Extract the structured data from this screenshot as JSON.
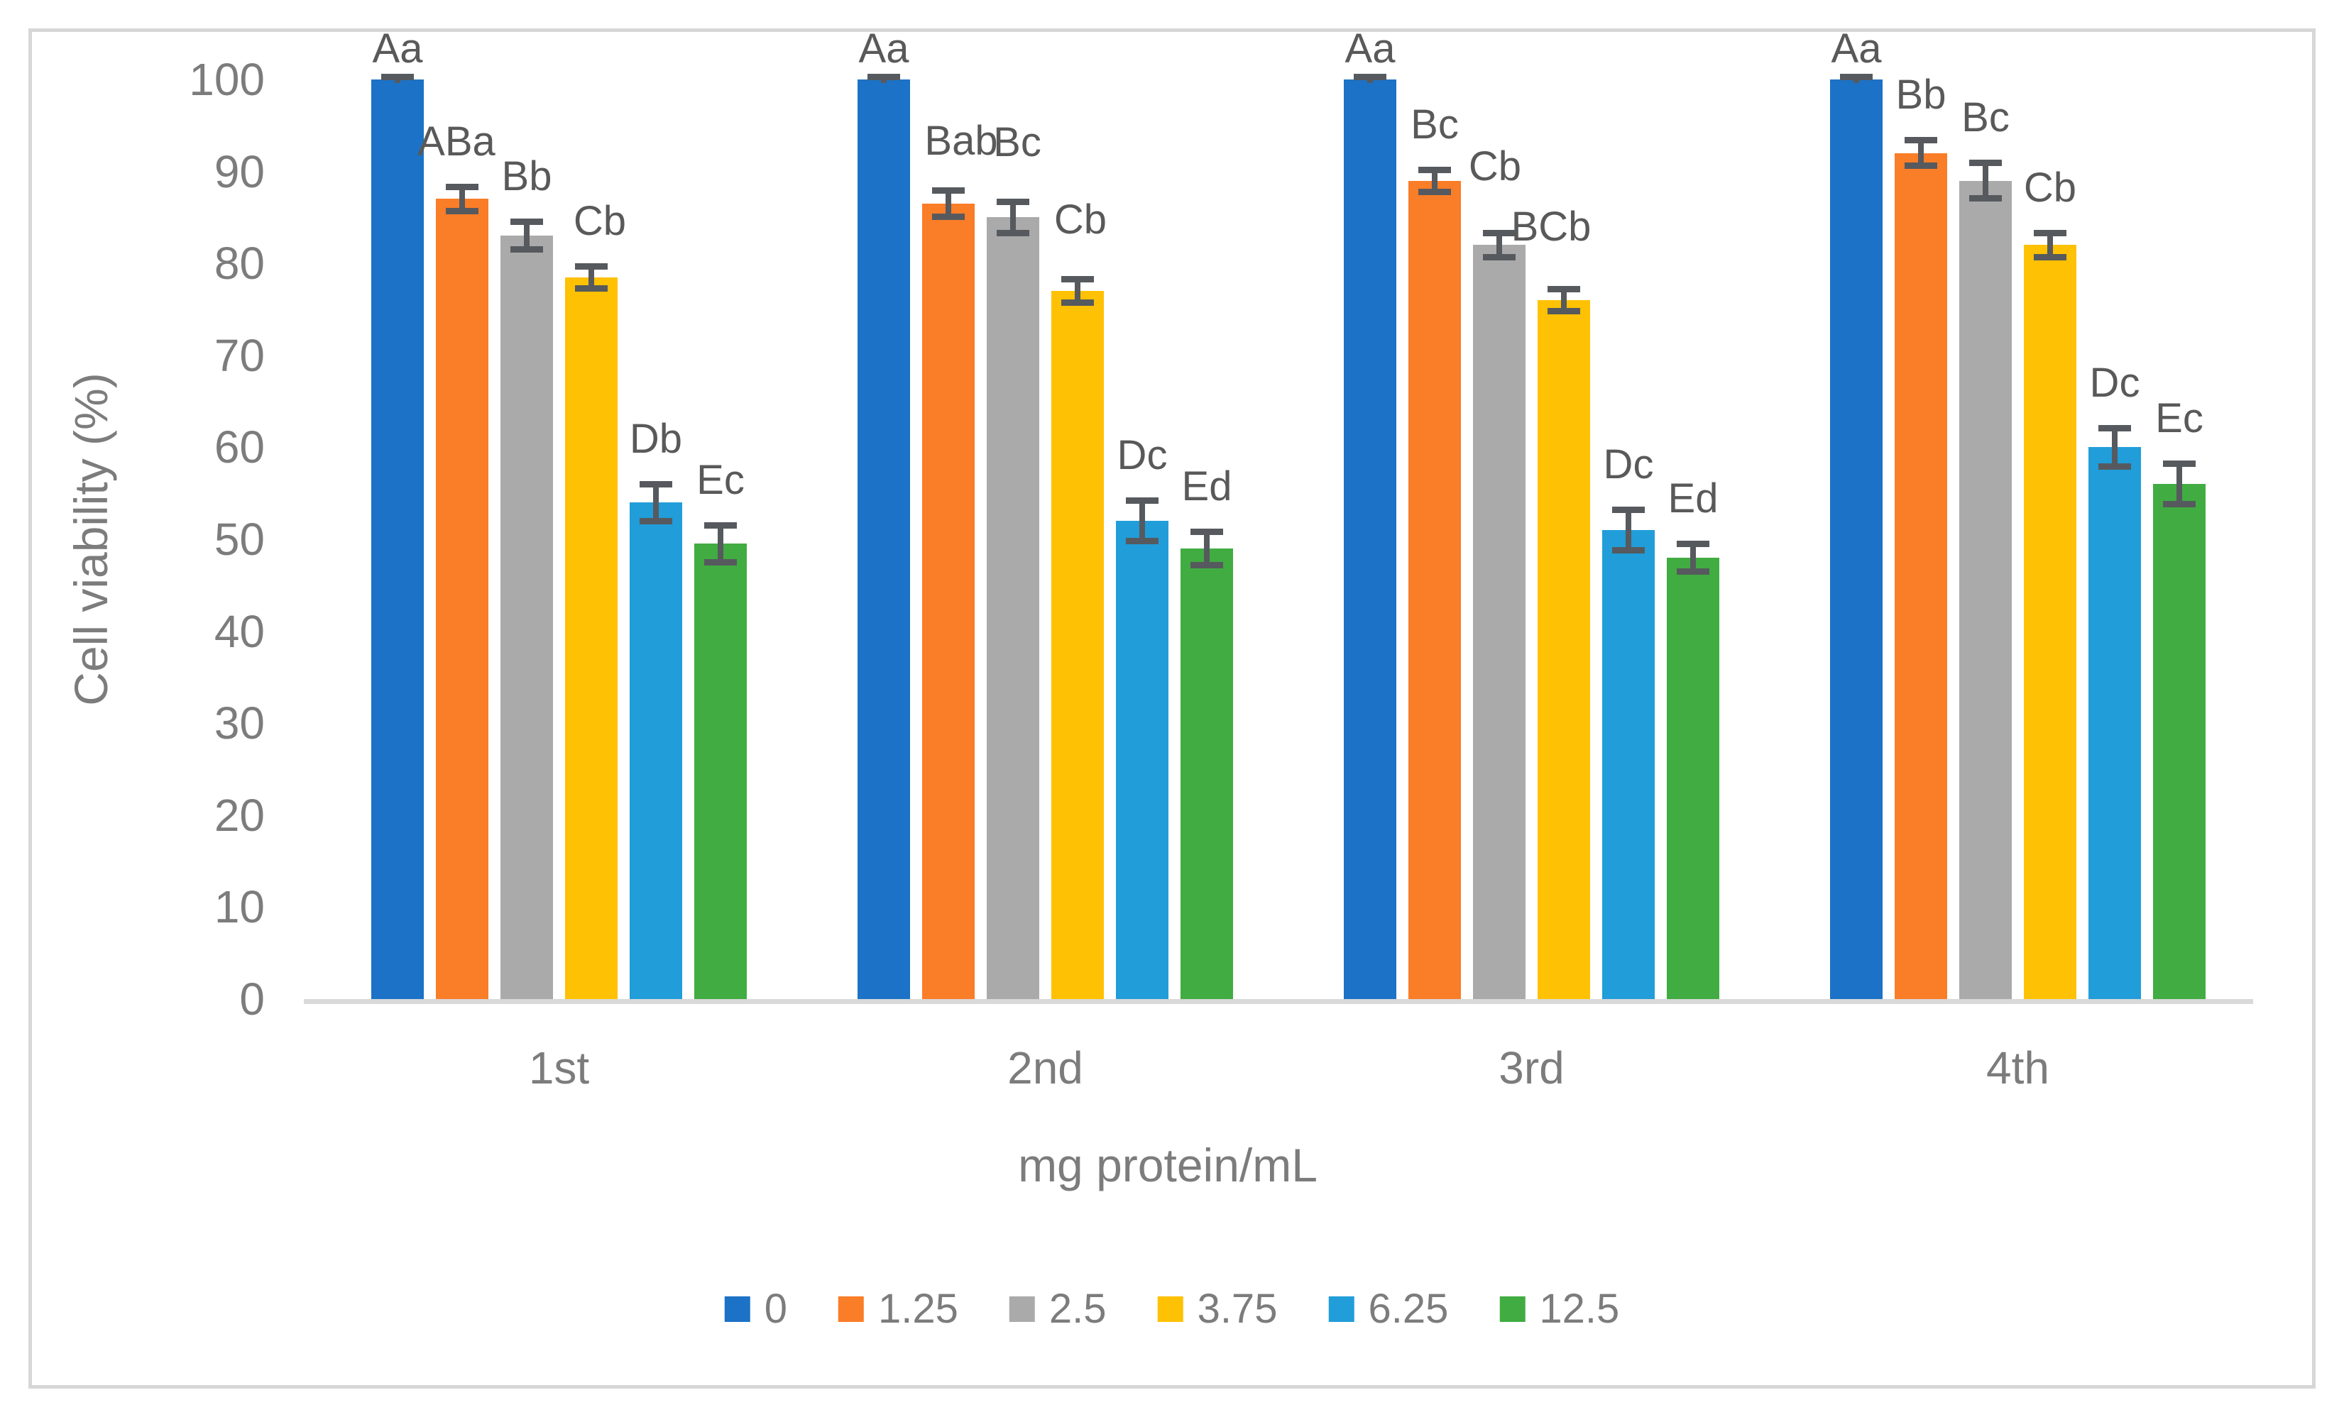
{
  "figure": {
    "background": "#ffffff",
    "border_color": "#d7d7d7"
  },
  "chart_data": {
    "type": "bar",
    "title": "",
    "xlabel": "mg protein/mL",
    "ylabel": "Cell viability (%)",
    "ylim": [
      0,
      100
    ],
    "yticks": [
      0,
      10,
      20,
      30,
      40,
      50,
      60,
      70,
      80,
      90,
      100
    ],
    "grid": false,
    "legend_position": "bottom-center",
    "axis_line_color": "#d9d9d9",
    "error_bar_color": "#565a5e",
    "tick_label_color": "#7c7c7c",
    "data_label_color": "#595959",
    "categories": [
      "1st",
      "2nd",
      "3rd",
      "4th"
    ],
    "series": [
      {
        "name": "0",
        "color": "#1c72c6",
        "values": [
          100,
          100,
          100,
          100
        ],
        "errors": [
          0.3,
          0.3,
          0.3,
          0.3
        ],
        "point_labels": [
          "Aa",
          "Aa",
          "Aa",
          "Aa"
        ]
      },
      {
        "name": "1.25",
        "color": "#fa7d28",
        "values": [
          87,
          86.5,
          89,
          92
        ],
        "errors": [
          1.3,
          1.4,
          1.2,
          1.4
        ],
        "point_labels": [
          "ABa",
          "Bab",
          "Bc",
          "Bb"
        ]
      },
      {
        "name": "2.5",
        "color": "#aaaaaa",
        "values": [
          83,
          85,
          82,
          89
        ],
        "errors": [
          1.5,
          1.7,
          1.3,
          1.9
        ],
        "point_labels": [
          "Bb",
          "Bc",
          "Cb",
          "Bc"
        ]
      },
      {
        "name": "3.75",
        "color": "#ffc103",
        "values": [
          78.5,
          77,
          76,
          82
        ],
        "errors": [
          1.2,
          1.3,
          1.2,
          1.3
        ],
        "point_labels": [
          "Cb",
          "Cb",
          "BCb",
          "Cb"
        ]
      },
      {
        "name": "6.25",
        "color": "#219dd9",
        "values": [
          54,
          52,
          51,
          60
        ],
        "errors": [
          2.0,
          2.2,
          2.2,
          2.1
        ],
        "point_labels": [
          "Db",
          "Dc",
          "Dc",
          "Dc"
        ]
      },
      {
        "name": "12.5",
        "color": "#41ac41",
        "values": [
          49.5,
          49,
          48,
          56
        ],
        "errors": [
          2.0,
          1.8,
          1.5,
          2.2
        ],
        "point_labels": [
          "Ec",
          "Ed",
          "Ed",
          "Ec"
        ]
      }
    ]
  }
}
